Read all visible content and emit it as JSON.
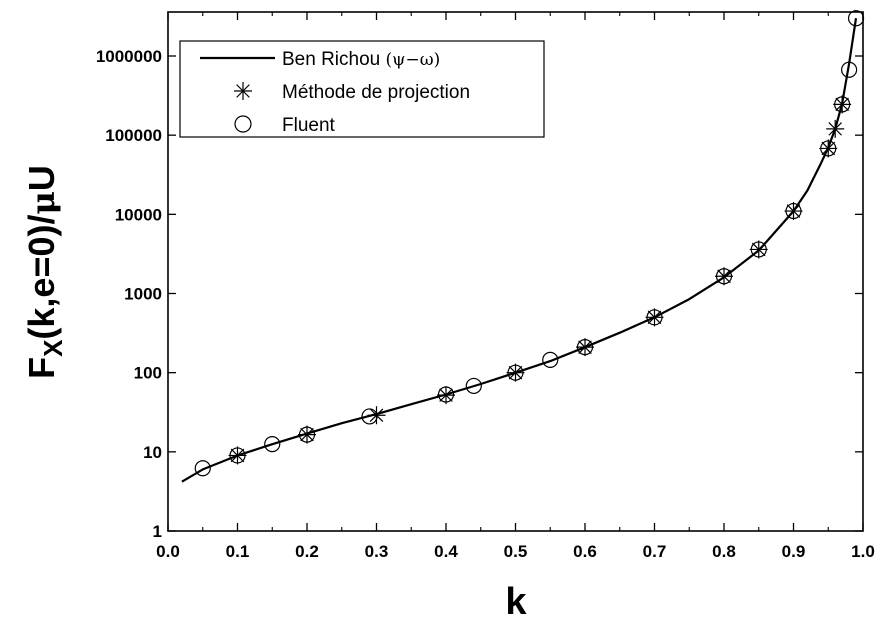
{
  "chart_data": {
    "type": "scatter",
    "xlabel": "k",
    "ylabel": {
      "main": "F",
      "subscript": "X",
      "rest": "(k,e=0)/",
      "mu": "μ",
      "tail": "U"
    },
    "xlim": [
      0.0,
      1.0
    ],
    "ylim": [
      1,
      3000000
    ],
    "y_scale": "log",
    "x_ticks": [
      "0.0",
      "0.1",
      "0.2",
      "0.3",
      "0.4",
      "0.5",
      "0.6",
      "0.7",
      "0.8",
      "0.9",
      "1.0"
    ],
    "y_ticks": [
      "1",
      "10",
      "100",
      "1000",
      "10000",
      "100000",
      "1000000"
    ],
    "grid": false,
    "legend_position": "top-left",
    "series": [
      {
        "name": "Ben Richou (ψ−ω)",
        "marker": "line",
        "x": [
          0.02,
          0.05,
          0.1,
          0.15,
          0.2,
          0.25,
          0.3,
          0.35,
          0.4,
          0.45,
          0.5,
          0.55,
          0.6,
          0.65,
          0.7,
          0.75,
          0.8,
          0.85,
          0.9,
          0.92,
          0.94,
          0.95,
          0.96,
          0.97,
          0.98,
          0.99
        ],
        "y": [
          4.2,
          6,
          9,
          12.5,
          17,
          23,
          30,
          40,
          53,
          72,
          100,
          140,
          210,
          320,
          500,
          850,
          1600,
          3500,
          11000,
          20000,
          45000,
          70000,
          120000,
          250000,
          800000,
          3000000
        ]
      },
      {
        "name": "Méthode de projection",
        "marker": "asterisk",
        "x": [
          0.1,
          0.2,
          0.3,
          0.4,
          0.5,
          0.6,
          0.7,
          0.8,
          0.85,
          0.9,
          0.95,
          0.96,
          0.97
        ],
        "y": [
          9,
          16.5,
          29,
          52,
          100,
          210,
          500,
          1650,
          3600,
          11000,
          68000,
          120000,
          245000
        ]
      },
      {
        "name": "Fluent",
        "marker": "circle",
        "x": [
          0.05,
          0.1,
          0.15,
          0.2,
          0.29,
          0.4,
          0.44,
          0.5,
          0.55,
          0.6,
          0.7,
          0.8,
          0.85,
          0.9,
          0.95,
          0.97,
          0.98,
          0.99
        ],
        "y": [
          6.2,
          9,
          12.5,
          16.5,
          28,
          53,
          68,
          100,
          145,
          210,
          500,
          1650,
          3600,
          11000,
          68000,
          245000,
          670000,
          3000000
        ]
      }
    ]
  }
}
